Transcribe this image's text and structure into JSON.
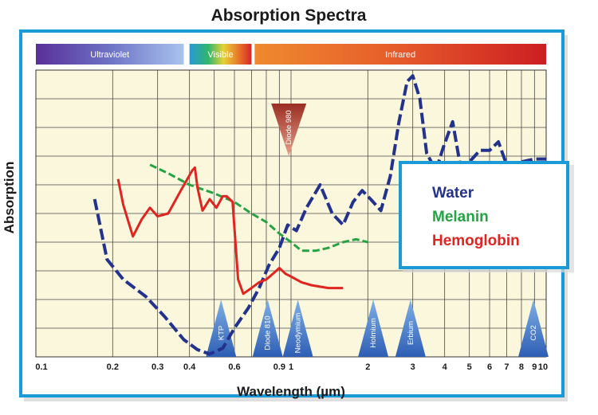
{
  "chart_data": {
    "type": "line",
    "title": "Absorption Spectra",
    "xlabel": "Wavelength (µm)",
    "ylabel": "Absorption",
    "x_scale": "log",
    "xlim": [
      0.1,
      10
    ],
    "ylim": [
      0,
      10
    ],
    "grid": true,
    "x_ticks": [
      {
        "value": 0.1,
        "label": "0.1"
      },
      {
        "value": 0.2,
        "label": "0.2"
      },
      {
        "value": 0.3,
        "label": "0.3"
      },
      {
        "value": 0.4,
        "label": "0.4"
      },
      {
        "value": 0.6,
        "label": "0.6"
      },
      {
        "value": 0.9,
        "label": "0.9"
      },
      {
        "value": 1,
        "label": "1"
      },
      {
        "value": 2,
        "label": "2"
      },
      {
        "value": 3,
        "label": "3"
      },
      {
        "value": 4,
        "label": "4"
      },
      {
        "value": 5,
        "label": "5"
      },
      {
        "value": 6,
        "label": "6"
      },
      {
        "value": 7,
        "label": "7"
      },
      {
        "value": 8,
        "label": "8"
      },
      {
        "value": 9,
        "label": "9"
      },
      {
        "value": 10,
        "label": "10"
      }
    ],
    "bands": [
      {
        "label": "Ultraviolet",
        "from": 0.1,
        "to": 0.38,
        "colors": [
          "#5a2f98",
          "#6d73c6",
          "#a9c3ee"
        ]
      },
      {
        "label": "Visible",
        "from": 0.4,
        "to": 0.7,
        "colors": [
          "#2a9ad6",
          "#2fb56e",
          "#e6d235",
          "#e8742a",
          "#d6262a"
        ]
      },
      {
        "label": "Infrared",
        "from": 0.72,
        "to": 10,
        "colors": [
          "#ef8a2e",
          "#e65a2a",
          "#cc1e22"
        ]
      }
    ],
    "series": [
      {
        "name": "Water",
        "color": "#23328c",
        "style": "dashed",
        "x": [
          0.17,
          0.19,
          0.22,
          0.27,
          0.32,
          0.38,
          0.43,
          0.48,
          0.54,
          0.6,
          0.68,
          0.75,
          0.82,
          0.9,
          0.97,
          1.05,
          1.15,
          1.3,
          1.45,
          1.6,
          1.75,
          1.9,
          2.05,
          2.25,
          2.45,
          2.65,
          2.85,
          3.0,
          3.2,
          3.4,
          3.7,
          3.95,
          4.3,
          4.6,
          5.0,
          5.5,
          6.0,
          6.5,
          7.0,
          8.0,
          9.0,
          10.0
        ],
        "y": [
          5.5,
          3.4,
          2.7,
          2.1,
          1.4,
          0.6,
          0.25,
          0.1,
          0.3,
          1.0,
          1.7,
          2.4,
          3.2,
          3.8,
          4.6,
          4.4,
          5.2,
          6.0,
          5.0,
          4.6,
          5.4,
          5.8,
          5.5,
          5.1,
          6.3,
          8.2,
          9.6,
          9.8,
          9.0,
          7.1,
          6.5,
          7.3,
          8.2,
          6.7,
          6.8,
          7.2,
          7.2,
          7.5,
          6.7,
          6.8,
          6.9,
          6.9
        ]
      },
      {
        "name": "Melanin",
        "color": "#25a343",
        "style": "dashed",
        "x": [
          0.28,
          0.33,
          0.4,
          0.5,
          0.6,
          0.7,
          0.8,
          0.9,
          1.0,
          1.1,
          1.25,
          1.4,
          1.6,
          1.8,
          2.0
        ],
        "y": [
          6.7,
          6.4,
          6.0,
          5.7,
          5.4,
          5.0,
          4.7,
          4.3,
          4.0,
          3.7,
          3.7,
          3.8,
          4.0,
          4.1,
          4.0
        ]
      },
      {
        "name": "Hemoglobin",
        "color": "#e0241f",
        "style": "solid",
        "x": [
          0.21,
          0.22,
          0.24,
          0.26,
          0.28,
          0.3,
          0.33,
          0.37,
          0.41,
          0.42,
          0.43,
          0.45,
          0.48,
          0.51,
          0.54,
          0.56,
          0.59,
          0.62,
          0.65,
          0.7,
          0.75,
          0.8,
          0.85,
          0.9,
          0.95,
          1.0,
          1.1,
          1.2,
          1.4,
          1.6
        ],
        "y": [
          6.2,
          5.3,
          4.2,
          4.8,
          5.2,
          4.9,
          5.0,
          5.8,
          6.5,
          6.6,
          5.9,
          5.1,
          5.5,
          5.2,
          5.6,
          5.6,
          5.4,
          2.7,
          2.2,
          2.4,
          2.6,
          2.7,
          2.9,
          3.1,
          2.9,
          2.8,
          2.6,
          2.5,
          2.4,
          2.4
        ]
      }
    ],
    "lasers": [
      {
        "label": "Diode 980",
        "x": 0.98,
        "direction": "down",
        "color": "#b03a2a"
      },
      {
        "label": "KTP",
        "x": 0.532,
        "direction": "up",
        "color": "#3a6fc0"
      },
      {
        "label": "Diode 810",
        "x": 0.81,
        "direction": "up",
        "color": "#3a6fc0"
      },
      {
        "label": "Neodymium",
        "x": 1.064,
        "direction": "up",
        "color": "#3a6fc0"
      },
      {
        "label": "Holmium",
        "x": 2.1,
        "direction": "up",
        "color": "#3a6fc0"
      },
      {
        "label": "Erbium",
        "x": 2.94,
        "direction": "up",
        "color": "#3a6fc0"
      },
      {
        "label": "CO2",
        "x": 10.6,
        "direction": "up",
        "color": "#3a6fc0"
      }
    ],
    "legend": {
      "placement": "right",
      "entries": [
        {
          "label": "Water",
          "color": "#23328c"
        },
        {
          "label": "Melanin",
          "color": "#25a343"
        },
        {
          "label": "Hemoglobin",
          "color": "#e0241f"
        }
      ]
    },
    "frame_color": "#1a9bd7",
    "plot_background": "#fbf7dc"
  }
}
